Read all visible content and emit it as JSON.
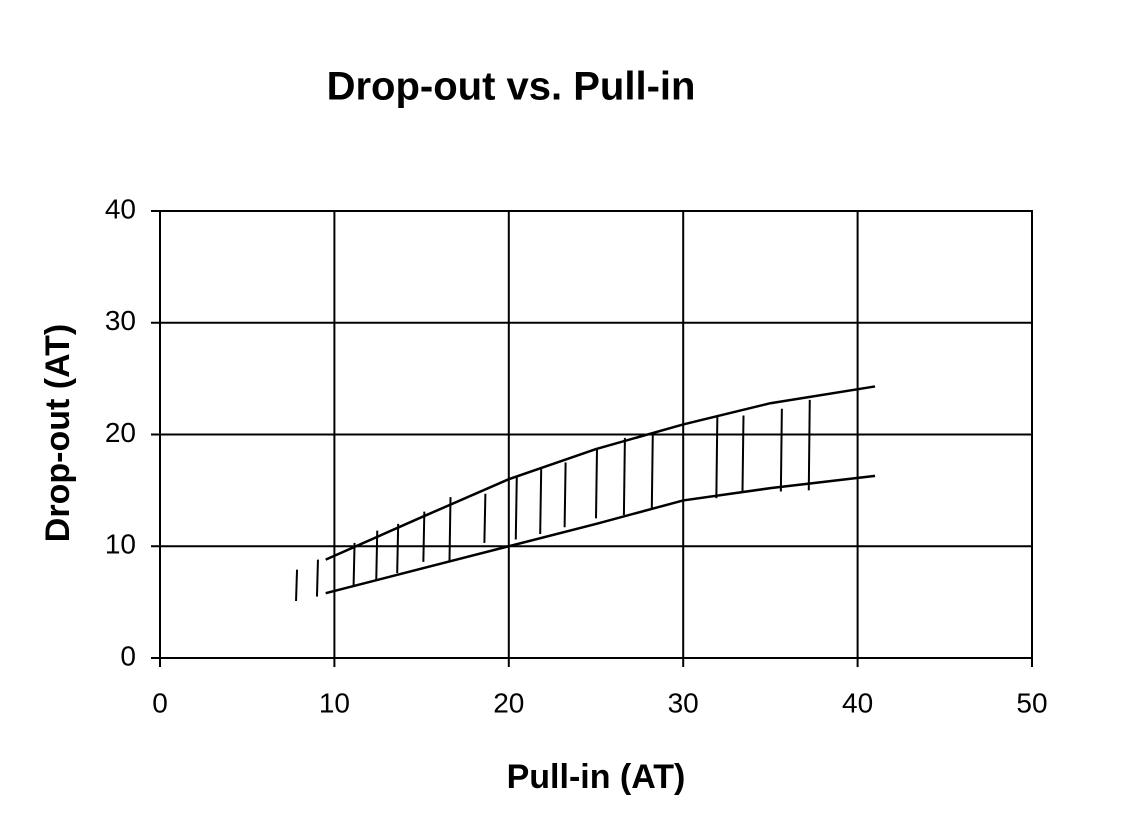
{
  "chart_data": {
    "type": "line",
    "title": "Drop-out vs. Pull-in",
    "x_label": "Pull-in (AT)",
    "y_label": "Drop-out (AT)",
    "x": [
      9.5,
      15,
      20,
      25,
      30,
      35,
      41
    ],
    "series": [
      {
        "color": "#000000",
        "values": [
          8.8,
          12.6,
          16.0,
          18.7,
          20.9,
          22.8,
          24.3
        ]
      },
      {
        "color": "#000000",
        "values": [
          5.8,
          8.0,
          10.0,
          12.0,
          14.1,
          15.2,
          16.3
        ]
      }
    ],
    "hatch": {
      "color": "#000000",
      "x": [
        7.8,
        9.0,
        11.1,
        12.4,
        13.6,
        15.1,
        16.6,
        18.6,
        20.4,
        21.8,
        23.2,
        25.0,
        26.6,
        28.2,
        31.9,
        33.4,
        35.6,
        37.2
      ],
      "low": [
        5.1,
        5.5,
        6.5,
        7.0,
        7.6,
        8.6,
        8.7,
        10.3,
        10.6,
        11.1,
        11.7,
        12.5,
        12.8,
        13.4,
        14.3,
        14.9,
        14.9,
        15.0
      ],
      "high": [
        7.9,
        8.8,
        10.3,
        11.4,
        12.0,
        13.1,
        14.4,
        14.7,
        16.2,
        16.9,
        17.5,
        18.7,
        19.7,
        20.2,
        21.6,
        21.7,
        22.3,
        23.1
      ]
    },
    "xlim": [
      0,
      50
    ],
    "xticks": [
      0,
      10,
      20,
      30,
      40,
      50
    ],
    "ylim": [
      0,
      40
    ],
    "yticks": [
      0,
      10,
      20,
      30,
      40
    ],
    "grid": true
  }
}
